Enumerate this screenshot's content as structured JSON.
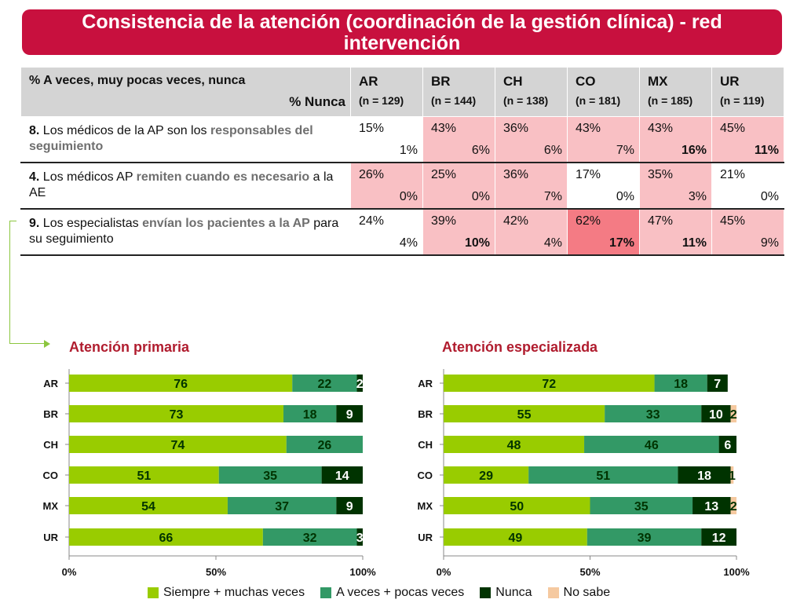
{
  "title": "Consistencia de la atención (coordinación de la gestión clínica) - red intervención",
  "table": {
    "header_line1": "% A veces, muy pocas veces, nunca",
    "header_line2": "% Nunca",
    "countries": [
      {
        "code": "AR",
        "n": "(n = 129)"
      },
      {
        "code": "BR",
        "n": "(n = 144)"
      },
      {
        "code": "CH",
        "n": "(n = 138)"
      },
      {
        "code": "CO",
        "n": "(n = 181)"
      },
      {
        "code": "MX",
        "n": "(n = 185)"
      },
      {
        "code": "UR",
        "n": "(n = 119)"
      }
    ],
    "rows": [
      {
        "num": "8.",
        "t1": " Los médicos de la AP son los ",
        "hl1": "responsables del seguimiento",
        "t2": "",
        "hl2": "",
        "t3": "",
        "cells": [
          {
            "v1": "15%",
            "v2": "1%",
            "bold": false,
            "shade": "w"
          },
          {
            "v1": "43%",
            "v2": "6%",
            "bold": false,
            "shade": "p"
          },
          {
            "v1": "36%",
            "v2": "6%",
            "bold": false,
            "shade": "p"
          },
          {
            "v1": "43%",
            "v2": "7%",
            "bold": false,
            "shade": "p"
          },
          {
            "v1": "43%",
            "v2": "16%",
            "bold": true,
            "shade": "p"
          },
          {
            "v1": "45%",
            "v2": "11%",
            "bold": true,
            "shade": "p"
          }
        ]
      },
      {
        "num": "4.",
        "t1": " Los médicos AP ",
        "hl1": "remiten cuando es necesario",
        "t2": " a la AE",
        "hl2": "",
        "t3": "",
        "cells": [
          {
            "v1": "26%",
            "v2": "0%",
            "bold": false,
            "shade": "p"
          },
          {
            "v1": "25%",
            "v2": "0%",
            "bold": false,
            "shade": "p"
          },
          {
            "v1": "36%",
            "v2": "7%",
            "bold": false,
            "shade": "p"
          },
          {
            "v1": "17%",
            "v2": "0%",
            "bold": false,
            "shade": "w"
          },
          {
            "v1": "35%",
            "v2": "3%",
            "bold": false,
            "shade": "p"
          },
          {
            "v1": "21%",
            "v2": "0%",
            "bold": false,
            "shade": "w"
          }
        ]
      },
      {
        "num": "9.",
        "t1": " Los especialistas ",
        "hl1": "envían los pacientes a la AP",
        "t2": " para su seguimiento",
        "hl2": "",
        "t3": "",
        "cells": [
          {
            "v1": "24%",
            "v2": "4%",
            "bold": false,
            "shade": "w"
          },
          {
            "v1": "39%",
            "v2": "10%",
            "bold": true,
            "shade": "p"
          },
          {
            "v1": "42%",
            "v2": "4%",
            "bold": false,
            "shade": "p"
          },
          {
            "v1": "62%",
            "v2": "17%",
            "bold": true,
            "shade": "r"
          },
          {
            "v1": "47%",
            "v2": "11%",
            "bold": true,
            "shade": "p"
          },
          {
            "v1": "45%",
            "v2": "9%",
            "bold": false,
            "shade": "p"
          }
        ]
      }
    ]
  },
  "colors": {
    "title_bg": "#c8103e",
    "siempre": "#99cc00",
    "aveces": "#339966",
    "nunca": "#003300",
    "nosabe": "#f5c9a0",
    "shade_pink": "#f9c0c4",
    "shade_red": "#f47b84"
  },
  "chart_data": [
    {
      "type": "bar",
      "orientation": "horizontal-stacked-100",
      "title": "Atención primaria",
      "categories": [
        "AR",
        "BR",
        "CH",
        "CO",
        "MX",
        "UR"
      ],
      "series": [
        {
          "name": "Siempre + muchas veces",
          "values": [
            76,
            73,
            74,
            51,
            54,
            66
          ]
        },
        {
          "name": "A veces + pocas veces",
          "values": [
            22,
            18,
            26,
            35,
            37,
            32
          ]
        },
        {
          "name": "Nunca",
          "values": [
            2,
            9,
            null,
            14,
            9,
            3
          ]
        },
        {
          "name": "No sabe",
          "values": [
            null,
            null,
            null,
            null,
            null,
            null
          ]
        }
      ],
      "xticks": [
        "0%",
        "50%",
        "100%"
      ],
      "xlim": [
        0,
        100
      ]
    },
    {
      "type": "bar",
      "orientation": "horizontal-stacked-100",
      "title": "Atención especializada",
      "categories": [
        "AR",
        "BR",
        "CH",
        "CO",
        "MX",
        "UR"
      ],
      "series": [
        {
          "name": "Siempre + muchas veces",
          "values": [
            72,
            55,
            48,
            29,
            50,
            49
          ]
        },
        {
          "name": "A veces + pocas veces",
          "values": [
            18,
            33,
            46,
            51,
            35,
            39
          ]
        },
        {
          "name": "Nunca",
          "values": [
            7,
            10,
            6,
            18,
            13,
            12
          ]
        },
        {
          "name": "No sabe",
          "values": [
            null,
            2,
            null,
            1,
            2,
            null
          ]
        }
      ],
      "xticks": [
        "0%",
        "50%",
        "100%"
      ],
      "xlim": [
        0,
        100
      ]
    }
  ],
  "legend": [
    {
      "label": "Siempre + muchas veces",
      "color": "#99cc00"
    },
    {
      "label": "A veces + pocas veces",
      "color": "#339966"
    },
    {
      "label": "Nunca",
      "color": "#003300"
    },
    {
      "label": "No sabe",
      "color": "#f5c9a0"
    }
  ]
}
